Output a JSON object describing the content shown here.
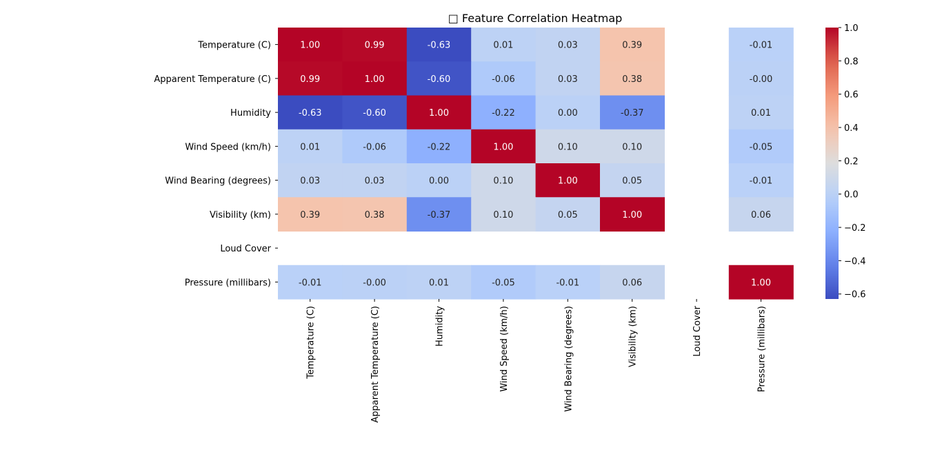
{
  "chart_data": {
    "type": "heatmap",
    "title": "□ Feature Correlation Heatmap",
    "xlabel": "",
    "ylabel": "",
    "labels": [
      "Temperature (C)",
      "Apparent Temperature (C)",
      "Humidity",
      "Wind Speed (km/h)",
      "Wind Bearing (degrees)",
      "Visibility (km)",
      "Loud Cover",
      "Pressure (millibars)"
    ],
    "matrix": [
      [
        1.0,
        0.99,
        -0.63,
        0.01,
        0.03,
        0.39,
        null,
        -0.01
      ],
      [
        0.99,
        1.0,
        -0.6,
        -0.06,
        0.03,
        0.38,
        null,
        -0.0
      ],
      [
        -0.63,
        -0.6,
        1.0,
        -0.22,
        0.0,
        -0.37,
        null,
        0.01
      ],
      [
        0.01,
        -0.06,
        -0.22,
        1.0,
        0.1,
        0.1,
        null,
        -0.05
      ],
      [
        0.03,
        0.03,
        0.0,
        0.1,
        1.0,
        0.05,
        null,
        -0.01
      ],
      [
        0.39,
        0.38,
        -0.37,
        0.1,
        0.05,
        1.0,
        null,
        0.06
      ],
      [
        null,
        null,
        null,
        null,
        null,
        null,
        null,
        null
      ],
      [
        -0.01,
        -0.0,
        0.01,
        -0.05,
        -0.01,
        0.06,
        null,
        1.0
      ]
    ],
    "value_labels": [
      [
        "1.00",
        "0.99",
        "-0.63",
        "0.01",
        "0.03",
        "0.39",
        "",
        "-0.01"
      ],
      [
        "0.99",
        "1.00",
        "-0.60",
        "-0.06",
        "0.03",
        "0.38",
        "",
        "-0.00"
      ],
      [
        "-0.63",
        "-0.60",
        "1.00",
        "-0.22",
        "0.00",
        "-0.37",
        "",
        "0.01"
      ],
      [
        "0.01",
        "-0.06",
        "-0.22",
        "1.00",
        "0.10",
        "0.10",
        "",
        "-0.05"
      ],
      [
        "0.03",
        "0.03",
        "0.00",
        "0.10",
        "1.00",
        "0.05",
        "",
        "-0.01"
      ],
      [
        "0.39",
        "0.38",
        "-0.37",
        "0.10",
        "0.05",
        "1.00",
        "",
        "0.06"
      ],
      [
        "",
        "",
        "",
        "",
        "",
        "",
        "",
        ""
      ],
      [
        "-0.01",
        "-0.00",
        "0.01",
        "-0.05",
        "-0.01",
        "0.06",
        "",
        "1.00"
      ]
    ],
    "colormap": "coolwarm",
    "colorbar": {
      "range": [
        -0.63,
        1.0
      ],
      "ticks": [
        1.0,
        0.8,
        0.6,
        0.4,
        0.2,
        0.0,
        -0.2,
        -0.4,
        -0.6
      ],
      "tick_labels": [
        "1.0",
        "0.8",
        "0.6",
        "0.4",
        "0.2",
        "0.0",
        "−0.2",
        "−0.4",
        "−0.6"
      ]
    },
    "grid": false
  }
}
